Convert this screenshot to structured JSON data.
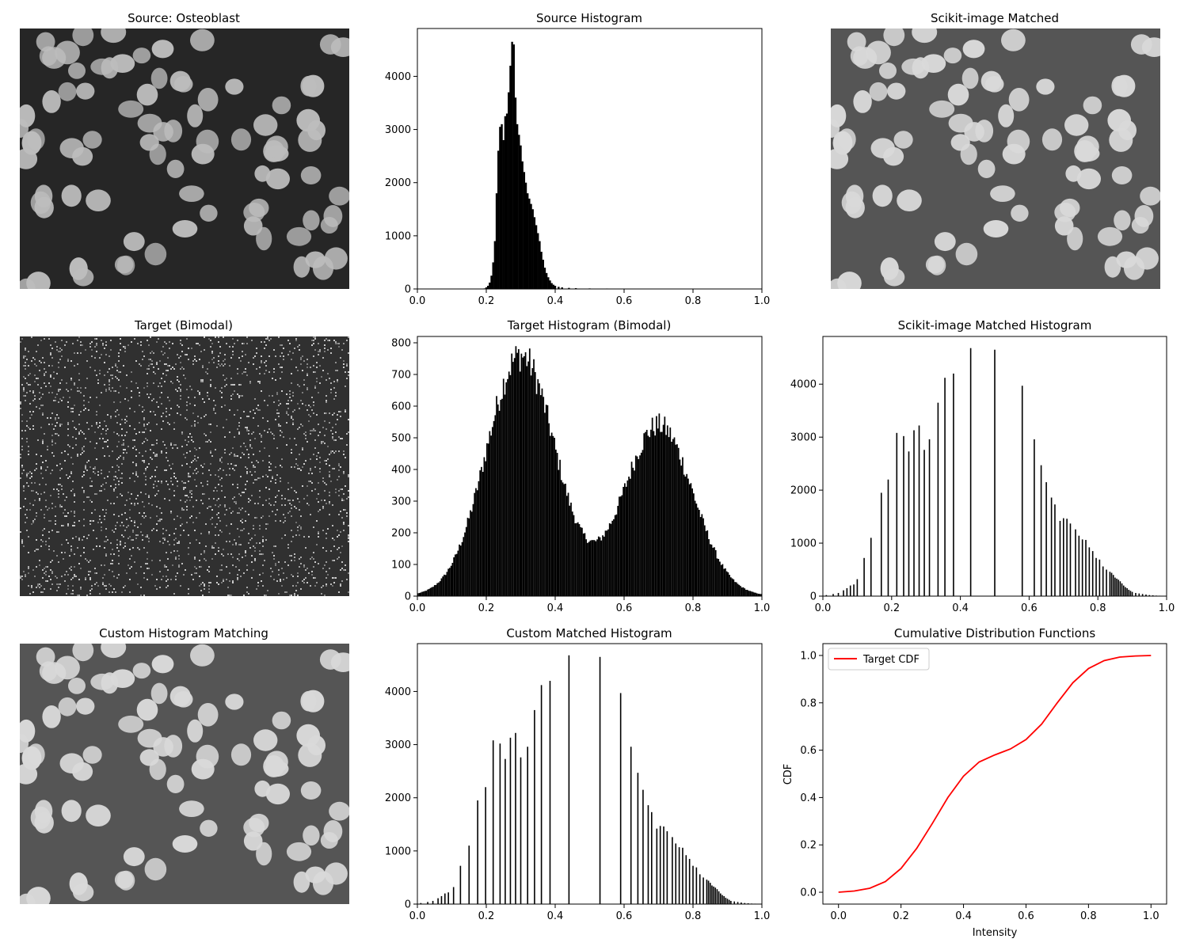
{
  "chart_data": [
    {
      "type": "image",
      "title": "Source: Osteoblast",
      "description_kind": "grayscale microscopy",
      "colors": {
        "background": "#262626",
        "cells": "#bdbdbd"
      }
    },
    {
      "type": "bar",
      "title": "Source Histogram",
      "xlim": [
        0.0,
        1.0
      ],
      "ylim": [
        0,
        4900
      ],
      "xticks": [
        "0.0",
        "0.2",
        "0.4",
        "0.6",
        "0.8",
        "1.0"
      ],
      "yticks": [
        "0",
        "1000",
        "2000",
        "3000",
        "4000"
      ],
      "x": [
        0.195,
        0.2,
        0.205,
        0.21,
        0.215,
        0.22,
        0.225,
        0.23,
        0.235,
        0.24,
        0.245,
        0.25,
        0.255,
        0.26,
        0.265,
        0.27,
        0.275,
        0.28,
        0.285,
        0.29,
        0.295,
        0.3,
        0.305,
        0.31,
        0.315,
        0.32,
        0.325,
        0.33,
        0.335,
        0.34,
        0.345,
        0.35,
        0.355,
        0.36,
        0.365,
        0.37,
        0.375,
        0.38,
        0.385,
        0.39,
        0.395,
        0.4,
        0.41,
        0.42,
        0.44,
        0.46,
        0.5,
        0.55,
        0.6
      ],
      "values": [
        10,
        30,
        60,
        120,
        250,
        500,
        900,
        1800,
        2600,
        3050,
        3100,
        2800,
        3250,
        3300,
        3700,
        4200,
        4650,
        4600,
        3600,
        3100,
        2900,
        2700,
        2400,
        2200,
        2000,
        1800,
        1700,
        1600,
        1500,
        1350,
        1200,
        1050,
        900,
        700,
        550,
        400,
        300,
        220,
        160,
        110,
        80,
        60,
        40,
        30,
        20,
        15,
        10,
        8,
        5
      ],
      "color": "#000000"
    },
    {
      "type": "image",
      "title": "Scikit-image Matched",
      "colors": {
        "background": "#555555",
        "cells": "#d9d9d9"
      }
    },
    {
      "type": "image",
      "title": "Target (Bimodal)",
      "colors": {
        "noise_dark": "#303030",
        "noise_light": "#d0d0d0"
      }
    },
    {
      "type": "bar",
      "title": "Target Histogram (Bimodal)",
      "xlim": [
        0.0,
        1.0
      ],
      "ylim": [
        0,
        820
      ],
      "xticks": [
        "0.0",
        "0.2",
        "0.4",
        "0.6",
        "0.8",
        "1.0"
      ],
      "yticks": [
        "0",
        "100",
        "200",
        "300",
        "400",
        "500",
        "600",
        "700",
        "800"
      ],
      "components": [
        {
          "mean": 0.3,
          "sd": 0.1,
          "peak": 760
        },
        {
          "mean": 0.7,
          "sd": 0.1,
          "peak": 540
        }
      ],
      "bin_width": 0.004,
      "color": "#000000"
    },
    {
      "type": "bar",
      "title": "Scikit-image Matched Histogram",
      "xlim": [
        0.0,
        1.0
      ],
      "ylim": [
        0,
        4900
      ],
      "xticks": [
        "0.0",
        "0.2",
        "0.4",
        "0.6",
        "0.8",
        "1.0"
      ],
      "yticks": [
        "0",
        "1000",
        "2000",
        "3000",
        "4000"
      ],
      "x": [
        0.01,
        0.03,
        0.045,
        0.06,
        0.07,
        0.08,
        0.09,
        0.1,
        0.12,
        0.14,
        0.17,
        0.19,
        0.215,
        0.235,
        0.25,
        0.265,
        0.28,
        0.295,
        0.31,
        0.335,
        0.355,
        0.38,
        0.43,
        0.5,
        0.58,
        0.615,
        0.635,
        0.65,
        0.665,
        0.675,
        0.69,
        0.7,
        0.71,
        0.72,
        0.735,
        0.745,
        0.755,
        0.765,
        0.775,
        0.785,
        0.795,
        0.805,
        0.815,
        0.825,
        0.835,
        0.84,
        0.845,
        0.85,
        0.855,
        0.86,
        0.865,
        0.87,
        0.875,
        0.88,
        0.885,
        0.89,
        0.895,
        0.9,
        0.91,
        0.92,
        0.93,
        0.94,
        0.95,
        0.96,
        0.97,
        0.98,
        0.99
      ],
      "values": [
        20,
        40,
        60,
        110,
        150,
        200,
        220,
        320,
        720,
        1100,
        1950,
        2200,
        3080,
        3020,
        2730,
        3130,
        3220,
        2760,
        2960,
        3650,
        4120,
        4200,
        4680,
        4650,
        3970,
        2960,
        2470,
        2150,
        1860,
        1730,
        1420,
        1470,
        1460,
        1370,
        1260,
        1140,
        1070,
        1060,
        920,
        850,
        720,
        690,
        560,
        500,
        460,
        440,
        400,
        350,
        330,
        310,
        280,
        240,
        200,
        170,
        150,
        120,
        100,
        80,
        60,
        50,
        40,
        30,
        20,
        15,
        10,
        8,
        5
      ],
      "color": "#000000"
    },
    {
      "type": "image",
      "title": "Custom Histogram Matching",
      "colors": {
        "background": "#555555",
        "cells": "#d9d9d9"
      }
    },
    {
      "type": "bar",
      "title": "Custom Matched Histogram",
      "xlim": [
        0.0,
        1.0
      ],
      "ylim": [
        0,
        4900
      ],
      "xticks": [
        "0.0",
        "0.2",
        "0.4",
        "0.6",
        "0.8",
        "1.0"
      ],
      "yticks": [
        "0",
        "1000",
        "2000",
        "3000",
        "4000"
      ],
      "x": [
        0.01,
        0.03,
        0.045,
        0.06,
        0.07,
        0.08,
        0.09,
        0.105,
        0.125,
        0.15,
        0.175,
        0.198,
        0.22,
        0.24,
        0.255,
        0.27,
        0.285,
        0.3,
        0.32,
        0.34,
        0.36,
        0.385,
        0.44,
        0.53,
        0.59,
        0.62,
        0.64,
        0.655,
        0.67,
        0.68,
        0.695,
        0.705,
        0.715,
        0.725,
        0.74,
        0.75,
        0.76,
        0.77,
        0.78,
        0.79,
        0.8,
        0.81,
        0.82,
        0.83,
        0.84,
        0.845,
        0.85,
        0.855,
        0.86,
        0.865,
        0.87,
        0.875,
        0.88,
        0.885,
        0.89,
        0.895,
        0.9,
        0.905,
        0.91,
        0.92,
        0.93,
        0.94,
        0.95,
        0.96,
        0.97,
        0.98,
        0.99
      ],
      "values": [
        20,
        40,
        60,
        110,
        150,
        200,
        220,
        320,
        720,
        1100,
        1950,
        2200,
        3080,
        3020,
        2730,
        3130,
        3220,
        2760,
        2960,
        3650,
        4120,
        4200,
        4680,
        4650,
        3970,
        2960,
        2470,
        2150,
        1860,
        1730,
        1420,
        1470,
        1460,
        1370,
        1260,
        1140,
        1070,
        1060,
        920,
        850,
        720,
        690,
        560,
        500,
        460,
        440,
        400,
        350,
        330,
        310,
        280,
        240,
        200,
        170,
        150,
        120,
        100,
        80,
        60,
        50,
        40,
        30,
        20,
        15,
        10,
        8,
        5
      ],
      "color": "#000000"
    },
    {
      "type": "line",
      "title": "Cumulative Distribution Functions",
      "xlabel": "Intensity",
      "ylabel": "CDF",
      "xlim": [
        -0.05,
        1.05
      ],
      "ylim": [
        -0.05,
        1.05
      ],
      "xticks": [
        "0.0",
        "0.2",
        "0.4",
        "0.6",
        "0.8",
        "1.0"
      ],
      "yticks": [
        "0.0",
        "0.2",
        "0.4",
        "0.6",
        "0.8",
        "1.0"
      ],
      "legend_position": "upper-left",
      "series": [
        {
          "name": "Target CDF",
          "color": "#ff0000",
          "x": [
            0.0,
            0.05,
            0.1,
            0.15,
            0.2,
            0.25,
            0.3,
            0.35,
            0.4,
            0.45,
            0.5,
            0.55,
            0.6,
            0.65,
            0.7,
            0.75,
            0.8,
            0.85,
            0.9,
            0.95,
            1.0
          ],
          "y": [
            0.0,
            0.005,
            0.017,
            0.045,
            0.1,
            0.185,
            0.29,
            0.4,
            0.49,
            0.55,
            0.58,
            0.605,
            0.645,
            0.71,
            0.8,
            0.885,
            0.945,
            0.978,
            0.993,
            0.998,
            1.0
          ]
        }
      ]
    }
  ]
}
